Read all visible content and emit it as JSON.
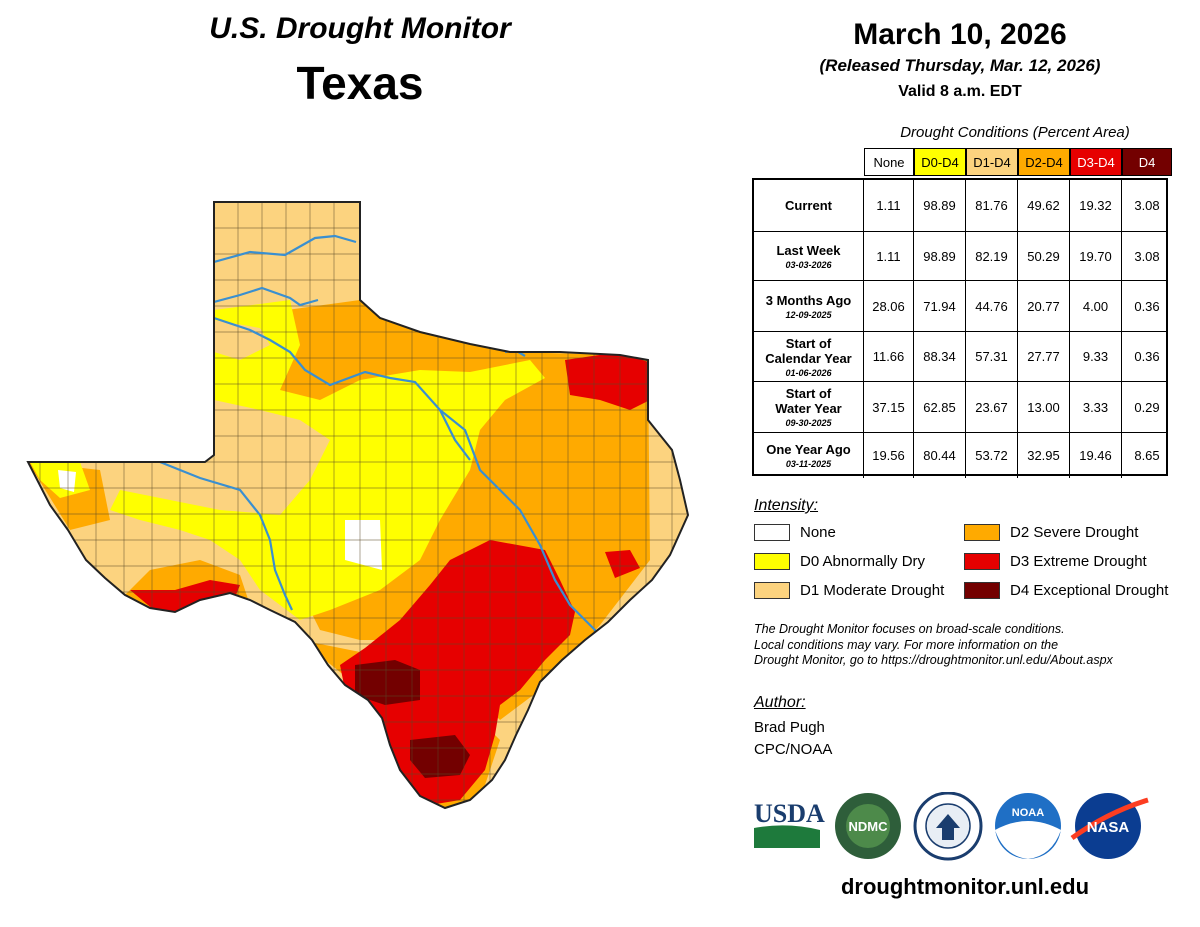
{
  "header": {
    "title": "U.S. Drought Monitor",
    "region": "Texas",
    "date": "March 10, 2026",
    "released": "(Released Thursday, Mar. 12, 2026)",
    "valid": "Valid 8 a.m. EDT"
  },
  "table": {
    "caption": "Drought Conditions (Percent Area)",
    "columns": [
      {
        "label": "None",
        "bg": "#ffffff",
        "color": "#000000"
      },
      {
        "label": "D0-D4",
        "bg": "#ffff00",
        "color": "#000000"
      },
      {
        "label": "D1-D4",
        "bg": "#fcd37f",
        "color": "#000000"
      },
      {
        "label": "D2-D4",
        "bg": "#ffaa00",
        "color": "#000000"
      },
      {
        "label": "D3-D4",
        "bg": "#e60000",
        "color": "#ffffff"
      },
      {
        "label": "D4",
        "bg": "#730000",
        "color": "#ffffff"
      }
    ],
    "rows": [
      {
        "name": "Current",
        "date": "",
        "values": [
          "1.11",
          "98.89",
          "81.76",
          "49.62",
          "19.32",
          "3.08"
        ]
      },
      {
        "name": "Last Week",
        "date": "03-03-2026",
        "values": [
          "1.11",
          "98.89",
          "82.19",
          "50.29",
          "19.70",
          "3.08"
        ]
      },
      {
        "name": "3 Months Ago",
        "date": "12-09-2025",
        "values": [
          "28.06",
          "71.94",
          "44.76",
          "20.77",
          "4.00",
          "0.36"
        ]
      },
      {
        "name": "Start of\nCalendar Year",
        "date": "01-06-2026",
        "values": [
          "11.66",
          "88.34",
          "57.31",
          "27.77",
          "9.33",
          "0.36"
        ]
      },
      {
        "name": "Start of\nWater Year",
        "date": "09-30-2025",
        "values": [
          "37.15",
          "62.85",
          "23.67",
          "13.00",
          "3.33",
          "0.29"
        ]
      },
      {
        "name": "One Year Ago",
        "date": "03-11-2025",
        "values": [
          "19.56",
          "80.44",
          "53.72",
          "32.95",
          "19.46",
          "8.65"
        ]
      }
    ]
  },
  "legend": {
    "title": "Intensity:",
    "items": [
      {
        "label": "None",
        "color": "#ffffff"
      },
      {
        "label": "D0 Abnormally Dry",
        "color": "#ffff00"
      },
      {
        "label": "D1 Moderate Drought",
        "color": "#fcd37f"
      },
      {
        "label": "D2 Severe Drought",
        "color": "#ffaa00"
      },
      {
        "label": "D3 Extreme Drought",
        "color": "#e60000"
      },
      {
        "label": "D4 Exceptional Drought",
        "color": "#730000"
      }
    ]
  },
  "note": {
    "line1": "The Drought Monitor focuses on broad-scale conditions.",
    "line2": "Local conditions may vary. For more information on the",
    "line3": "Drought Monitor, go to https://droughtmonitor.unl.edu/About.aspx"
  },
  "author": {
    "title": "Author:",
    "name": "Brad Pugh",
    "org": "CPC/NOAA"
  },
  "logos": {
    "usda": "USDA",
    "ndmc": "NDMC",
    "noaa": "NOAA",
    "nasa": "NASA"
  },
  "website": "droughtmonitor.unl.edu"
}
